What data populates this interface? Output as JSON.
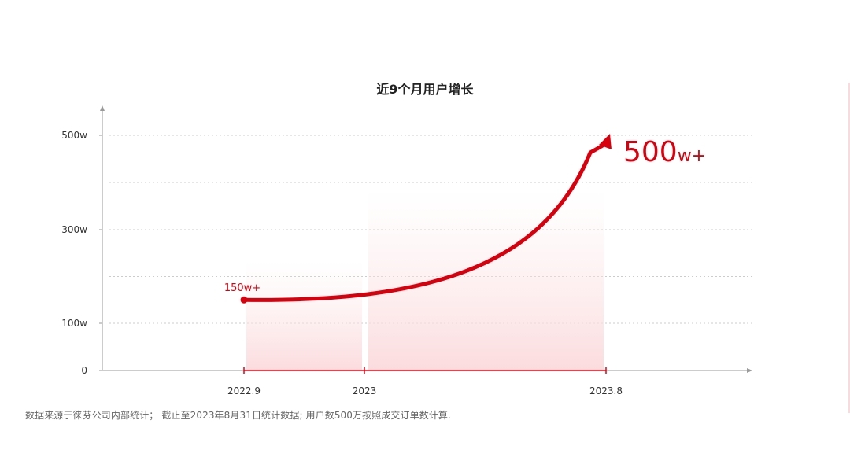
{
  "chart_data": {
    "type": "area",
    "title": "近9个月用户增长",
    "y_ticks": [
      "0",
      "100w",
      "300w",
      "500w"
    ],
    "y_tick_values": [
      0,
      100,
      300,
      500
    ],
    "ylim": [
      0,
      500
    ],
    "grid": true,
    "x_ticks": [
      "2022.9",
      "2023",
      "2023.8"
    ],
    "series": [
      {
        "x": [
          "2022.9",
          "2023.8"
        ],
        "values": [
          150,
          500
        ]
      }
    ],
    "annotations": {
      "start": "150w+",
      "end_main": "500",
      "end_suffix": "w+"
    },
    "colors": {
      "line": "#d9000d",
      "axis": "#999999",
      "grid": "#cccccc",
      "highlight": "#e60012"
    }
  },
  "footnote": "数据来源于徕芬公司内部统计； 截止至2023年8月31日统计数据; 用户数500万按照成交订单数计算."
}
